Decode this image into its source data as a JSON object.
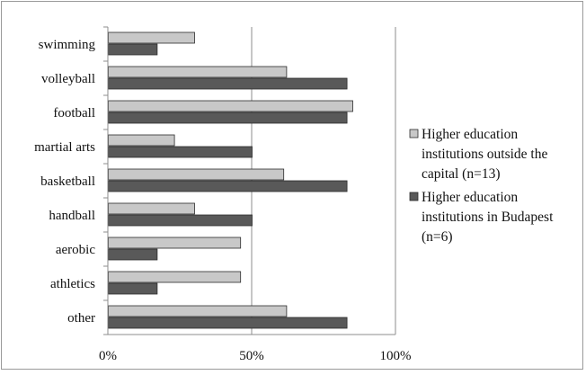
{
  "chart_data": {
    "type": "bar",
    "orientation": "horizontal",
    "categories": [
      "swimming",
      "volleyball",
      "football",
      "martial arts",
      "basketball",
      "handball",
      "aerobic",
      "athletics",
      "other"
    ],
    "series": [
      {
        "name": "Higher education institutions outside the capital (n=13)",
        "name_lines": [
          "Higher education",
          "institutions outside the",
          "capital (n=13)"
        ],
        "color": "#c8c8c8",
        "values": [
          30,
          62,
          85,
          23,
          61,
          30,
          46,
          46,
          62
        ]
      },
      {
        "name": "Higher education institutions in Budapest (n=6)",
        "name_lines": [
          "Higher education",
          "institutions in Budapest",
          "(n=6)"
        ],
        "color": "#595959",
        "values": [
          17,
          83,
          83,
          50,
          83,
          50,
          17,
          17,
          83
        ]
      }
    ],
    "xlim": [
      0,
      100
    ],
    "x_ticks": [
      0,
      50,
      100
    ],
    "x_tick_labels": [
      "0%",
      "50%",
      "100%"
    ],
    "grid": "vertical",
    "legend": "right"
  }
}
